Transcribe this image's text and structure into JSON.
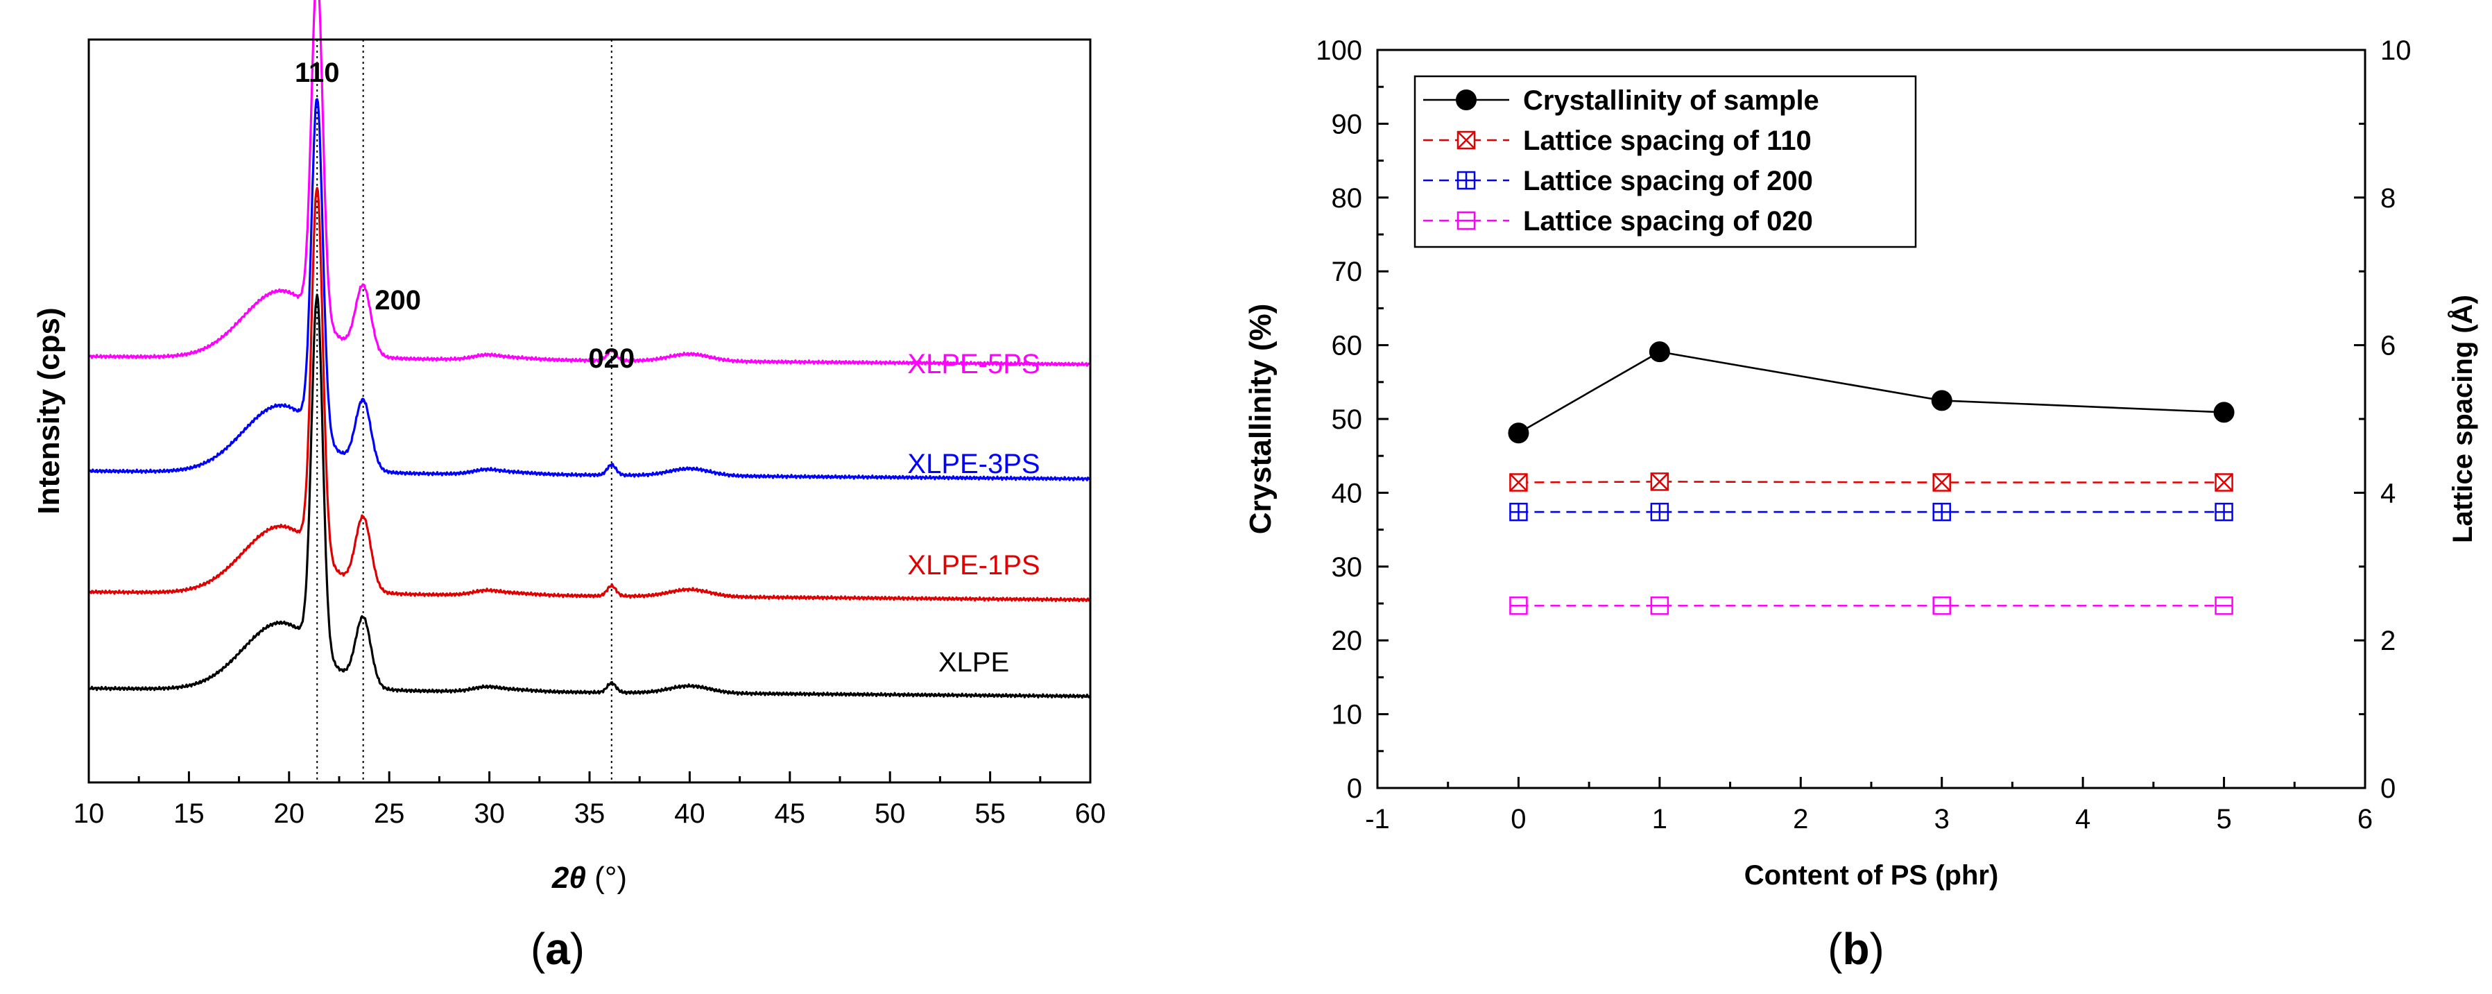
{
  "chart_data": [
    {
      "panel": "a",
      "type": "line",
      "caption_letter": "a",
      "xlabel_italic": "2θ",
      "xlabel_unit": " (°)",
      "ylabel": "Intensity (cps)",
      "xlim": [
        10,
        60
      ],
      "xticks": [
        10,
        15,
        20,
        25,
        30,
        35,
        40,
        45,
        50,
        55,
        60
      ],
      "yticks_shown": false,
      "reference_lines_2theta": [
        21.4,
        23.7,
        36.1
      ],
      "peak_annotations": [
        {
          "text": "110",
          "two_theta": 21.4
        },
        {
          "text": "200",
          "two_theta": 23.7
        },
        {
          "text": "020",
          "two_theta": 36.1
        }
      ],
      "series": [
        {
          "name": "XLPE",
          "color": "#000000",
          "baseline": 0.0,
          "peak_110": 4.45,
          "peak_200": 0.85,
          "peak_020": 0.12
        },
        {
          "name": "XLPE-1PS",
          "color": "#e00000",
          "baseline": 1.22,
          "peak_110": 4.6,
          "peak_200": 0.9,
          "peak_020": 0.13
        },
        {
          "name": "XLPE-3PS",
          "color": "#0000ff",
          "baseline": 2.75,
          "peak_110": 4.2,
          "peak_200": 0.85,
          "peak_020": 0.13
        },
        {
          "name": "XLPE-5PS",
          "color": "#ff00ff",
          "baseline": 4.2,
          "peak_110": 4.35,
          "peak_200": 0.85,
          "peak_020": 0.13
        }
      ]
    },
    {
      "panel": "b",
      "type": "line",
      "caption_letter": "b",
      "xlabel": "Content of PS (phr)",
      "ylabel": "Crystallinity (%)",
      "y2label": "Lattice spacing (Å)",
      "xlim": [
        -1,
        6
      ],
      "ylim": [
        0,
        100
      ],
      "y2lim": [
        0,
        10
      ],
      "xticks": [
        -1,
        0,
        1,
        2,
        3,
        4,
        5,
        6
      ],
      "yticks": [
        0,
        10,
        20,
        30,
        40,
        50,
        60,
        70,
        80,
        90,
        100
      ],
      "y2ticks": [
        0,
        2,
        4,
        6,
        8,
        10
      ],
      "x": [
        0,
        1,
        3,
        5
      ],
      "series": [
        {
          "name": "Crystallinity of sample",
          "axis": "left",
          "values": [
            48.1,
            59.1,
            52.5,
            50.9
          ],
          "color": "#000000",
          "marker": "filled-circle",
          "line": "solid"
        },
        {
          "name": "Lattice spacing of 110",
          "axis": "right",
          "values": [
            4.14,
            4.15,
            4.14,
            4.14
          ],
          "color": "#e00000",
          "marker": "square-x",
          "line": "dashed"
        },
        {
          "name": "Lattice spacing of 200",
          "axis": "right",
          "values": [
            3.74,
            3.74,
            3.74,
            3.74
          ],
          "color": "#0000ff",
          "marker": "square-plus",
          "line": "dashed"
        },
        {
          "name": "Lattice spacing of 020",
          "axis": "right",
          "values": [
            2.47,
            2.47,
            2.47,
            2.47
          ],
          "color": "#ff00ff",
          "marker": "square-minus",
          "line": "dashed"
        }
      ],
      "legend_position": "top-left"
    }
  ]
}
